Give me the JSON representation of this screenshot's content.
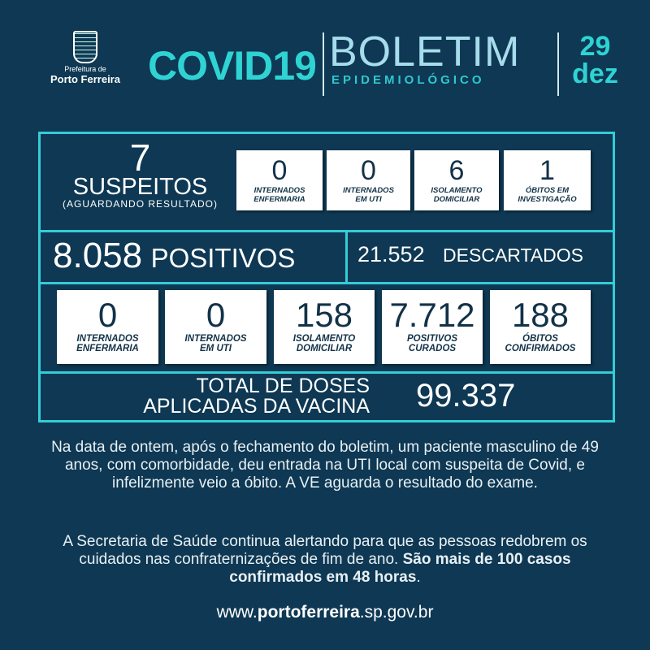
{
  "header": {
    "logo_line1": "Prefeitura de",
    "logo_line2": "Porto Ferreira",
    "covid": "COVID19",
    "boletim": "BOLETIM",
    "epidemiologico": "EPIDEMIOLÓGICO",
    "day": "29",
    "month": "dez"
  },
  "suspects": {
    "value": "7",
    "label": "SUSPEITOS",
    "sub": "(AGUARDANDO RESULTADO)",
    "boxes": [
      {
        "value": "0",
        "l1": "INTERNADOS",
        "l2": "ENFERMARIA"
      },
      {
        "value": "0",
        "l1": "INTERNADOS",
        "l2": "EM UTI"
      },
      {
        "value": "6",
        "l1": "ISOLAMENTO",
        "l2": "DOMICILIAR"
      },
      {
        "value": "1",
        "l1": "ÓBITOS EM",
        "l2": "INVESTIGAÇÃO"
      }
    ]
  },
  "positives": {
    "value": "8.058",
    "label": "POSITIVOS"
  },
  "discarded": {
    "value": "21.552",
    "label": "DESCARTADOS"
  },
  "positive_boxes": [
    {
      "value": "0",
      "l1": "INTERNADOS",
      "l2": "ENFERMARIA"
    },
    {
      "value": "0",
      "l1": "INTERNADOS",
      "l2": "EM UTI"
    },
    {
      "value": "158",
      "l1": "ISOLAMENTO",
      "l2": "DOMICILIAR"
    },
    {
      "value": "7.712",
      "l1": "POSITIVOS",
      "l2": "CURADOS"
    },
    {
      "value": "188",
      "l1": "ÓBITOS",
      "l2": "CONFIRMADOS"
    }
  ],
  "vaccine": {
    "l1": "TOTAL DE DOSES",
    "l2": "APLICADAS DA VACINA",
    "value": "99.337"
  },
  "text": {
    "p1": "Na data de ontem, após o fechamento do boletim, um paciente masculino de 49 anos, com comorbidade, deu entrada na UTI local com suspeita de Covid, e infelizmente veio a óbito. A VE aguarda o resultado do exame.",
    "p2_normal": "A Secretaria de Saúde continua alertando para que as pessoas redobrem os cuidados nas confraternizações de fim de ano. ",
    "p2_bold": "São mais de 100 casos confirmados em 48 horas",
    "p2_end": "."
  },
  "url": {
    "pre": "www.",
    "bold": "portoferreira",
    "post": ".sp.gov.br"
  },
  "colors": {
    "background": "#0e3853",
    "accent": "#2fd3d3",
    "frame": "#34cdd6"
  }
}
